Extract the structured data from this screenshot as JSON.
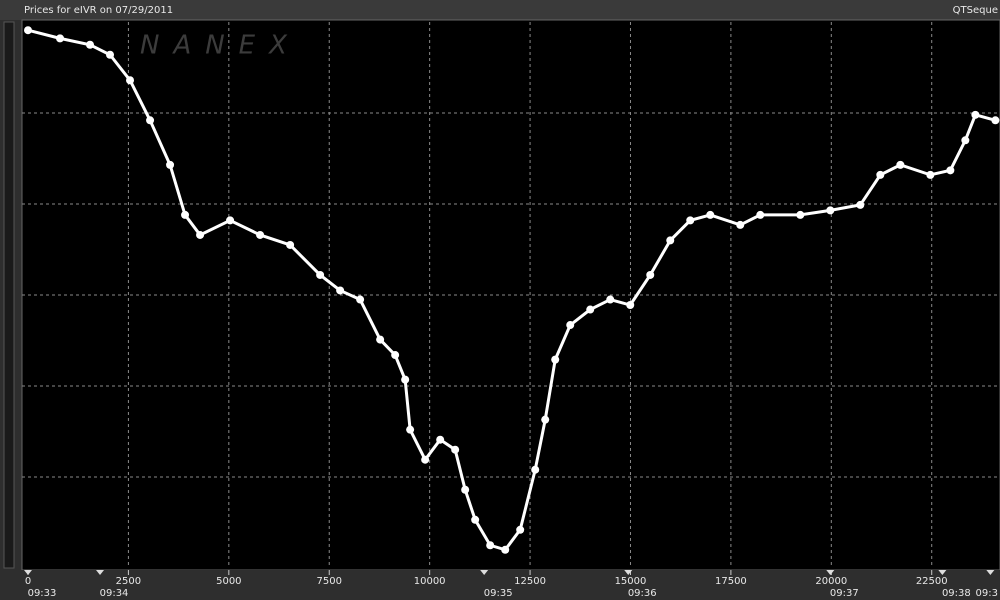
{
  "chart_data": {
    "type": "line",
    "title": "Prices for  eIVR  on  07/29/2011",
    "source": "QTSeque",
    "watermark": "NANEX",
    "xlim": [
      0,
      24200
    ],
    "ylim": [
      0,
      6
    ],
    "xticks": [
      0,
      2500,
      5000,
      7500,
      10000,
      12500,
      15000,
      17500,
      20000,
      22500
    ],
    "ygrid": [
      1,
      2,
      3,
      4,
      5
    ],
    "grid": true,
    "time_markers": [
      {
        "value": 0,
        "label": "09:33"
      },
      {
        "value": 1793,
        "label": "09:34"
      },
      {
        "value": 11357,
        "label": "09:35"
      },
      {
        "value": 14944,
        "label": "09:36"
      },
      {
        "value": 19975,
        "label": "09:37"
      },
      {
        "value": 22765,
        "label": "09:38"
      },
      {
        "value": 23960,
        "label": "09:3"
      }
    ],
    "series": [
      {
        "color": "#ffffff",
        "x": [
          0,
          797,
          1544,
          2042,
          2540,
          3039,
          3537,
          3910,
          4284,
          5031,
          5778,
          6526,
          7273,
          7771,
          8269,
          8767,
          9141,
          9390,
          9514,
          9888,
          10262,
          10635,
          10884,
          11133,
          11507,
          11881,
          12254,
          12628,
          12877,
          13126,
          13500,
          13998,
          14496,
          14994,
          15492,
          15990,
          16488,
          16986,
          17733,
          18232,
          19228,
          19975,
          20722,
          21220,
          21719,
          22466,
          22964,
          23337,
          23587,
          24085
        ],
        "values": [
          5.91,
          5.82,
          5.75,
          5.64,
          5.36,
          4.92,
          4.43,
          3.88,
          3.66,
          3.82,
          3.66,
          3.55,
          3.22,
          3.05,
          2.95,
          2.51,
          2.34,
          2.07,
          1.52,
          1.19,
          1.41,
          1.3,
          0.86,
          0.53,
          0.25,
          0.2,
          0.42,
          1.08,
          1.63,
          2.29,
          2.67,
          2.84,
          2.95,
          2.89,
          3.22,
          3.6,
          3.82,
          3.88,
          3.77,
          3.88,
          3.88,
          3.93,
          3.99,
          4.32,
          4.43,
          4.32,
          4.37,
          4.7,
          4.98,
          4.92
        ]
      }
    ]
  }
}
